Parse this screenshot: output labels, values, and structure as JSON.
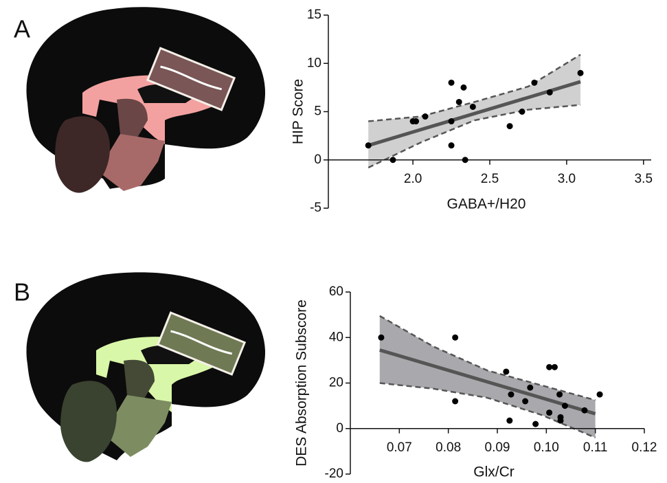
{
  "chart_data": [
    {
      "type": "scatter",
      "panel": "A",
      "x_label": "GABA+/H20",
      "y_label": "HIP Score",
      "x": [
        1.71,
        1.87,
        2.0,
        2.02,
        2.08,
        2.25,
        2.25,
        2.25,
        2.3,
        2.33,
        2.34,
        2.39,
        2.63,
        2.71,
        2.79,
        2.89,
        3.09
      ],
      "values": [
        1.5,
        0,
        4,
        4,
        4.5,
        4,
        1.5,
        8,
        6,
        7.5,
        0,
        5.5,
        3.5,
        5,
        8,
        7,
        9
      ],
      "color": "#000000",
      "fit_x": [
        1.71,
        2.05,
        2.4,
        2.75,
        3.09
      ],
      "fit_y": [
        1.5,
        3.13,
        4.8,
        6.47,
        8.1
      ],
      "ci_upper": [
        4,
        4.5,
        6.0,
        7.6,
        10.9
      ],
      "ci_lower": [
        -0.8,
        1.8,
        4.1,
        5.2,
        5.7
      ],
      "band_color": "#d0d0d0",
      "xlim": [
        1.45,
        3.55
      ],
      "xticks": [
        {
          "value": 2,
          "label": "2.0"
        },
        2.5,
        {
          "value": 3,
          "label": "3.0"
        },
        3.5
      ],
      "ylim": [
        -5,
        15
      ],
      "yticks": [
        -5,
        0,
        5,
        10,
        15
      ]
    },
    {
      "type": "scatter",
      "panel": "B",
      "x_label": "Glx/Cr",
      "y_label": "DES Absorption Subscore",
      "x": [
        0.0663,
        0.0814,
        0.0814,
        0.0918,
        0.0928,
        0.0925,
        0.0967,
        0.0957,
        0.0978,
        0.1006,
        0.1017,
        0.1006,
        0.1027,
        0.1029,
        0.1029,
        0.1038,
        0.1078,
        0.1109
      ],
      "values": [
        40,
        40,
        12,
        25,
        15,
        3.5,
        18,
        12,
        2,
        27,
        27,
        7,
        15,
        5,
        3.5,
        10,
        8,
        15
      ],
      "color": "#000000",
      "fit_x": [
        0.066,
        0.077,
        0.088,
        0.099,
        0.11
      ],
      "fit_y": [
        34.5,
        27.5,
        20.5,
        13.5,
        6.5
      ],
      "ci_upper": [
        49.5,
        36,
        25.5,
        19,
        12.5
      ],
      "ci_lower": [
        20,
        17.5,
        13.5,
        6,
        -4
      ],
      "band_color": "#a9a9ad",
      "xlim": [
        0.06,
        0.12
      ],
      "xticks": [
        0.07,
        0.08,
        0.09,
        {
          "value": 0.1,
          "label": "0.10"
        },
        0.11,
        0.12
      ],
      "ylim": [
        -20,
        60
      ],
      "yticks": [
        -20,
        0,
        20,
        40,
        60
      ]
    }
  ]
}
